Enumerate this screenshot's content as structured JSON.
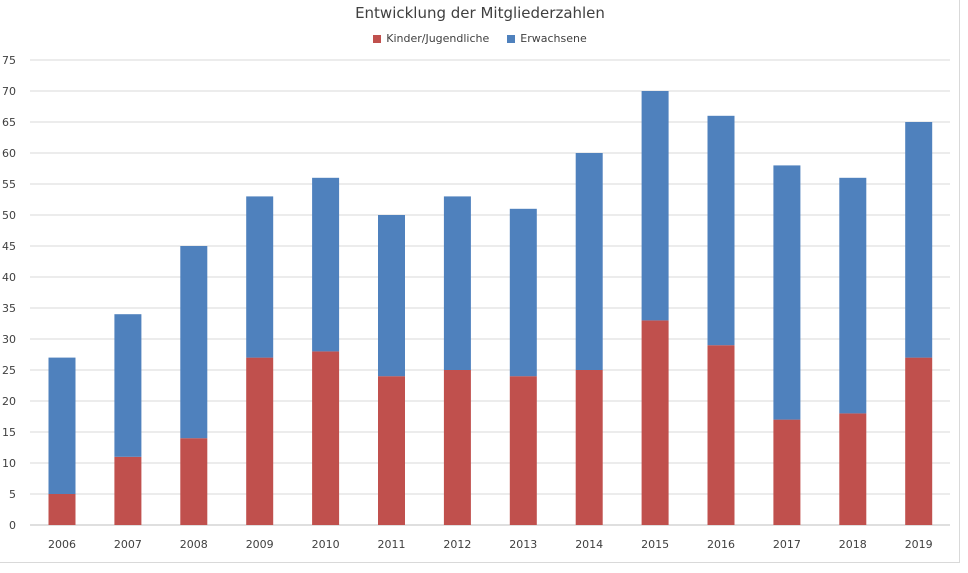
{
  "chart_data": {
    "type": "bar",
    "stacked": true,
    "title": "Entwicklung der Mitgliederzahlen",
    "xlabel": "",
    "ylabel": "",
    "categories": [
      "2006",
      "2007",
      "2008",
      "2009",
      "2010",
      "2011",
      "2012",
      "2013",
      "2014",
      "2015",
      "2016",
      "2017",
      "2018",
      "2019"
    ],
    "series": [
      {
        "name": "Kinder/Jugendliche",
        "color": "#c0504d",
        "values": [
          5,
          11,
          14,
          27,
          28,
          24,
          25,
          24,
          25,
          33,
          29,
          17,
          18,
          27
        ]
      },
      {
        "name": "Erwachsene",
        "color": "#4f81bd",
        "values": [
          22,
          23,
          31,
          26,
          28,
          26,
          28,
          27,
          35,
          37,
          37,
          41,
          38,
          38
        ]
      }
    ],
    "ylim": [
      0,
      75
    ],
    "yticks": [
      0,
      5,
      10,
      15,
      20,
      25,
      30,
      35,
      40,
      45,
      50,
      55,
      60,
      65,
      70,
      75
    ],
    "grid": true,
    "legend_position": "top"
  }
}
